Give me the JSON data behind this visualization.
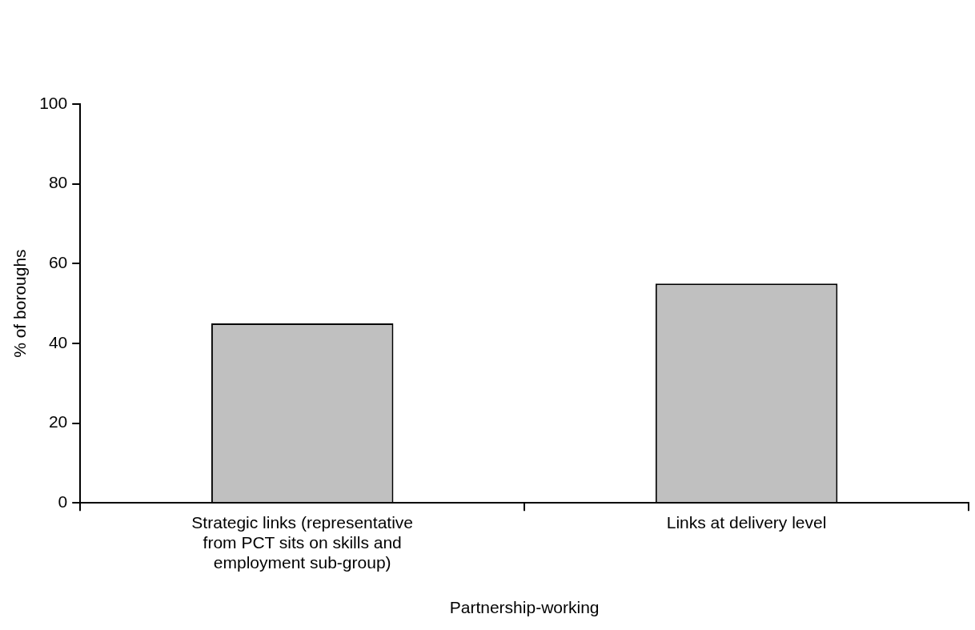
{
  "chart_data": {
    "type": "bar",
    "categories": [
      "Strategic links (representative from PCT sits on skills and employment sub-group)",
      "Links at delivery level"
    ],
    "values": [
      45,
      55
    ],
    "color": "#c0c0c0",
    "ylim": [
      0,
      100
    ],
    "yticks": [
      0,
      20,
      40,
      60,
      80,
      100
    ],
    "grid": false,
    "legend": false,
    "xlabel": "Partnership-working",
    "ylabel": "% of boroughs"
  }
}
